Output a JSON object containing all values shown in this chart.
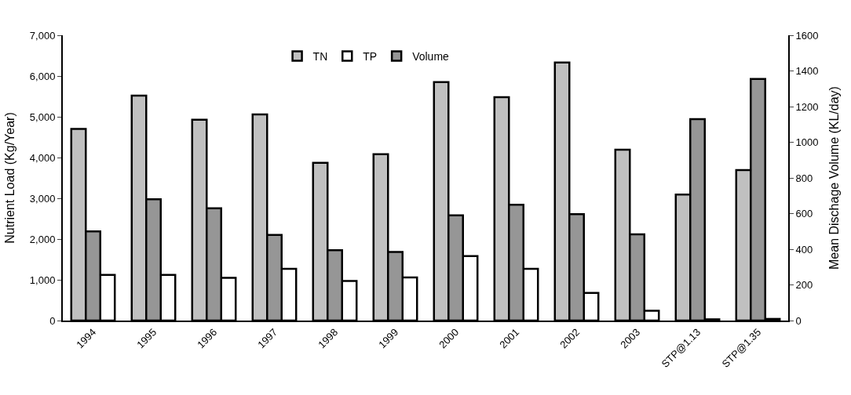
{
  "chart_data": {
    "type": "bar",
    "categories": [
      "1994",
      "1995",
      "1996",
      "1997",
      "1998",
      "1999",
      "2000",
      "2001",
      "2002",
      "2003",
      "STP@1.13",
      "STP@1.35"
    ],
    "series": [
      {
        "name": "TN",
        "color": "#c0c0c0",
        "values": [
          4700,
          5520,
          4930,
          5060,
          3870,
          4080,
          5850,
          5480,
          6330,
          4190,
          3090,
          3690
        ]
      },
      {
        "name": "Volume",
        "color": "#969696",
        "axis": "y2",
        "values": [
          500,
          680,
          630,
          480,
          395,
          385,
          590,
          650,
          597,
          483,
          1130,
          1355
        ]
      },
      {
        "name": "TP",
        "color": "#ffffff",
        "values": [
          1120,
          1120,
          1050,
          1270,
          970,
          1060,
          1580,
          1270,
          680,
          240,
          30,
          40
        ]
      }
    ],
    "ylabel": "Nutrient Load (Kg/Year)",
    "y2label": "Mean Dischage Volume (KL/day)",
    "ylim": [
      0,
      7000
    ],
    "yticks": [
      {
        "value": 0,
        "label": "0"
      },
      {
        "value": 1000,
        "label": "1,000"
      },
      {
        "value": 2000,
        "label": "2,000"
      },
      {
        "value": 3000,
        "label": "3,000"
      },
      {
        "value": 4000,
        "label": "4,000"
      },
      {
        "value": 5000,
        "label": "5,000"
      },
      {
        "value": 6000,
        "label": "6,000"
      },
      {
        "value": 7000,
        "label": "7,000"
      }
    ],
    "y2lim": [
      0,
      1600
    ],
    "y2ticks": [
      0,
      200,
      400,
      600,
      800,
      1000,
      1200,
      1400,
      1600
    ],
    "legend": "top"
  }
}
